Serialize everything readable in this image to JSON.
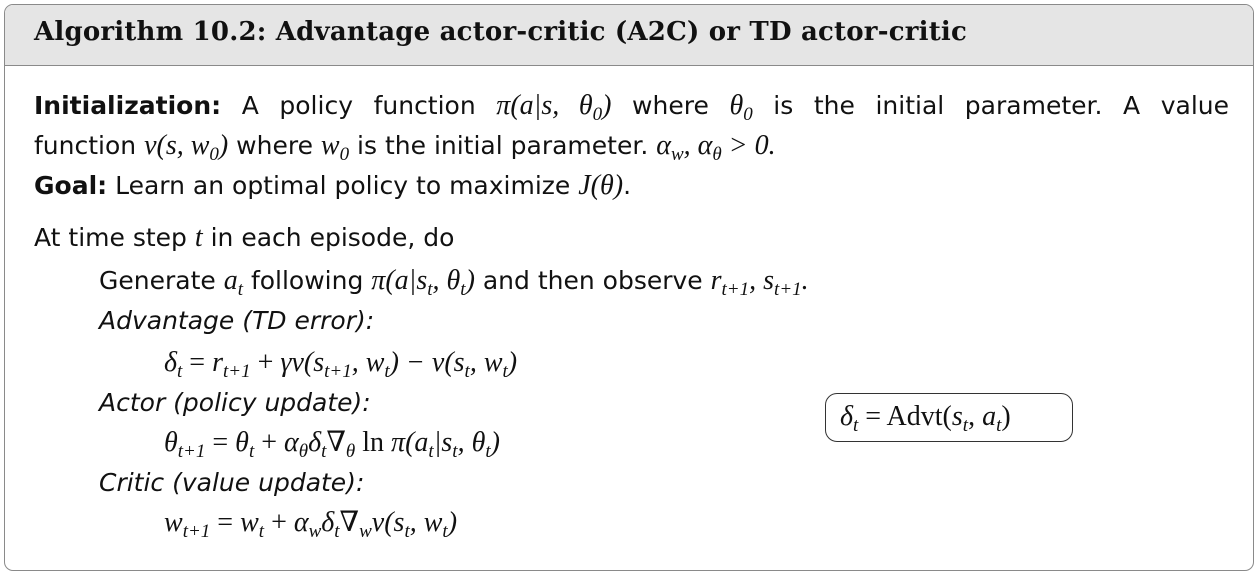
{
  "header": {
    "title": "Algorithm 10.2: Advantage actor-critic (A2C) or TD actor-critic"
  },
  "lines": [
    {
      "segs": [
        {
          "k": "b",
          "t": "Initialization:"
        },
        {
          "k": "t",
          "t": " A policy function "
        },
        {
          "k": "m",
          "t": "π(a|s, θ"
        },
        {
          "k": "sub",
          "t": "0"
        },
        {
          "k": "m",
          "t": ")"
        },
        {
          "k": "t",
          "t": " where "
        },
        {
          "k": "m",
          "t": "θ"
        },
        {
          "k": "sub",
          "t": "0"
        },
        {
          "k": "t",
          "t": " is the initial parameter.  A value"
        }
      ]
    },
    {
      "segs": [
        {
          "k": "t",
          "t": "function "
        },
        {
          "k": "m",
          "t": "v(s, w"
        },
        {
          "k": "sub",
          "t": "0"
        },
        {
          "k": "m",
          "t": ")"
        },
        {
          "k": "t",
          "t": " where "
        },
        {
          "k": "m",
          "t": "w"
        },
        {
          "k": "sub",
          "t": "0"
        },
        {
          "k": "t",
          "t": " is the initial parameter. "
        },
        {
          "k": "m",
          "t": "α"
        },
        {
          "k": "sub",
          "t": "w"
        },
        {
          "k": "m",
          "t": ", α"
        },
        {
          "k": "sub",
          "t": "θ"
        },
        {
          "k": "m",
          "t": " > 0."
        }
      ]
    },
    {
      "segs": [
        {
          "k": "b",
          "t": "Goal:"
        },
        {
          "k": "t",
          "t": " Learn an optimal policy to maximize "
        },
        {
          "k": "m",
          "t": "J(θ)"
        },
        {
          "k": "t",
          "t": "."
        }
      ]
    },
    {
      "segs": [
        {
          "k": "t",
          "t": "At time step "
        },
        {
          "k": "m",
          "t": "t"
        },
        {
          "k": "t",
          "t": " in each episode, do"
        }
      ]
    },
    {
      "segs": [
        {
          "k": "t",
          "t": "Generate "
        },
        {
          "k": "m",
          "t": "a"
        },
        {
          "k": "sub",
          "t": "t"
        },
        {
          "k": "t",
          "t": " following "
        },
        {
          "k": "m",
          "t": "π(a|s"
        },
        {
          "k": "sub",
          "t": "t"
        },
        {
          "k": "m",
          "t": ", θ"
        },
        {
          "k": "sub",
          "t": "t"
        },
        {
          "k": "m",
          "t": ")"
        },
        {
          "k": "t",
          "t": " and then observe "
        },
        {
          "k": "m",
          "t": "r"
        },
        {
          "k": "sub",
          "t": "t+1"
        },
        {
          "k": "m",
          "t": ", s"
        },
        {
          "k": "sub",
          "t": "t+1"
        },
        {
          "k": "m",
          "t": "."
        }
      ]
    },
    {
      "segs": [
        {
          "k": "i",
          "t": "Advantage (TD error):"
        }
      ]
    },
    {
      "segs": [
        {
          "k": "m",
          "t": "δ"
        },
        {
          "k": "sub",
          "t": "t"
        },
        {
          "k": "r",
          "t": " = "
        },
        {
          "k": "m",
          "t": "r"
        },
        {
          "k": "sub",
          "t": "t+1"
        },
        {
          "k": "r",
          "t": " + "
        },
        {
          "k": "m",
          "t": "γv(s"
        },
        {
          "k": "sub",
          "t": "t+1"
        },
        {
          "k": "m",
          "t": ", w"
        },
        {
          "k": "sub",
          "t": "t"
        },
        {
          "k": "m",
          "t": ") − v(s"
        },
        {
          "k": "sub",
          "t": "t"
        },
        {
          "k": "m",
          "t": ", w"
        },
        {
          "k": "sub",
          "t": "t"
        },
        {
          "k": "m",
          "t": ")"
        }
      ]
    },
    {
      "segs": [
        {
          "k": "i",
          "t": "Actor (policy update):"
        }
      ]
    },
    {
      "segs": [
        {
          "k": "m",
          "t": "θ"
        },
        {
          "k": "sub",
          "t": "t+1"
        },
        {
          "k": "r",
          "t": " = "
        },
        {
          "k": "m",
          "t": "θ"
        },
        {
          "k": "sub",
          "t": "t"
        },
        {
          "k": "r",
          "t": " + "
        },
        {
          "k": "m",
          "t": "α"
        },
        {
          "k": "sub",
          "t": "θ"
        },
        {
          "k": "m",
          "t": "δ"
        },
        {
          "k": "sub",
          "t": "t"
        },
        {
          "k": "r",
          "t": "∇"
        },
        {
          "k": "sub",
          "t": "θ"
        },
        {
          "k": "r",
          "t": " ln "
        },
        {
          "k": "m",
          "t": "π(a"
        },
        {
          "k": "sub",
          "t": "t"
        },
        {
          "k": "m",
          "t": "|s"
        },
        {
          "k": "sub",
          "t": "t"
        },
        {
          "k": "m",
          "t": ", θ"
        },
        {
          "k": "sub",
          "t": "t"
        },
        {
          "k": "m",
          "t": ")"
        }
      ]
    },
    {
      "segs": [
        {
          "k": "i",
          "t": "Critic (value update):"
        }
      ]
    },
    {
      "segs": [
        {
          "k": "m",
          "t": "w"
        },
        {
          "k": "sub",
          "t": "t+1"
        },
        {
          "k": "r",
          "t": " = "
        },
        {
          "k": "m",
          "t": "w"
        },
        {
          "k": "sub",
          "t": "t"
        },
        {
          "k": "r",
          "t": " + "
        },
        {
          "k": "m",
          "t": "α"
        },
        {
          "k": "sub",
          "t": "w"
        },
        {
          "k": "m",
          "t": "δ"
        },
        {
          "k": "sub",
          "t": "t"
        },
        {
          "k": "r",
          "t": "∇"
        },
        {
          "k": "sub",
          "t": "w"
        },
        {
          "k": "m",
          "t": "v(s"
        },
        {
          "k": "sub",
          "t": "t"
        },
        {
          "k": "m",
          "t": ", w"
        },
        {
          "k": "sub",
          "t": "t"
        },
        {
          "k": "m",
          "t": ")"
        }
      ]
    }
  ],
  "note": {
    "segs": [
      {
        "k": "m",
        "t": "δ"
      },
      {
        "k": "sub",
        "t": "t"
      },
      {
        "k": "r",
        "t": " =  Advt("
      },
      {
        "k": "m",
        "t": "s"
      },
      {
        "k": "sub",
        "t": "t"
      },
      {
        "k": "r",
        "t": ", "
      },
      {
        "k": "m",
        "t": "a"
      },
      {
        "k": "sub",
        "t": "t"
      },
      {
        "k": "r",
        "t": ")"
      }
    ]
  }
}
